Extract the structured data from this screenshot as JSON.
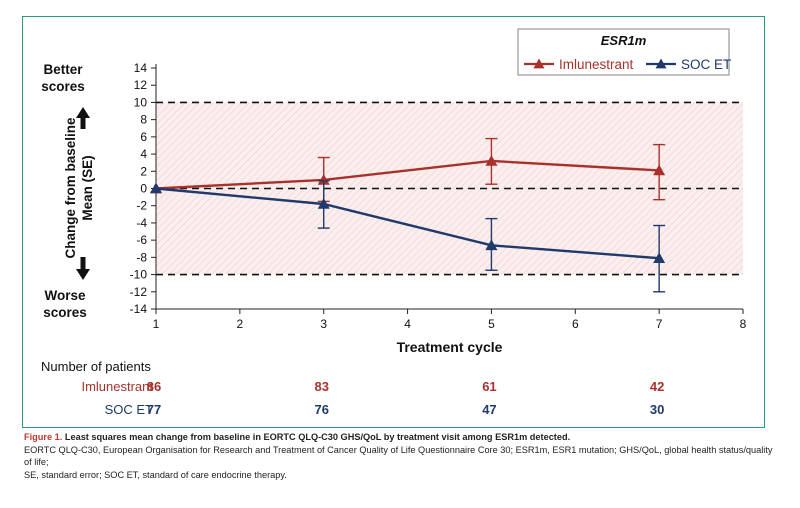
{
  "chart_data": {
    "type": "line",
    "xlabel": "Treatment cycle",
    "ylabel": [
      "Change from baseline",
      "Mean (SE)"
    ],
    "better_label": [
      "Better",
      "scores"
    ],
    "worse_label": [
      "Worse",
      "scores"
    ],
    "xlim": [
      1,
      8
    ],
    "ylim": [
      -14,
      14
    ],
    "x_ticks": [
      1,
      2,
      3,
      4,
      5,
      6,
      7,
      8
    ],
    "y_ticks": [
      14,
      12,
      10,
      8,
      6,
      4,
      2,
      0,
      -2,
      -4,
      -6,
      -8,
      -10,
      -12,
      -14
    ],
    "reference_lines": [
      10,
      0,
      -10
    ],
    "shaded_band": [
      -10,
      10
    ],
    "legend": {
      "title": "ESR1m",
      "placement": "top-right"
    },
    "series": [
      {
        "name": "Imlunestrant",
        "color": "#a8322b",
        "marker": "triangle",
        "x": [
          1,
          3,
          5,
          7
        ],
        "y": [
          0.0,
          1.0,
          3.2,
          2.1
        ],
        "err_low": [
          0.0,
          -1.5,
          0.5,
          -1.3
        ],
        "err_high": [
          0.0,
          3.6,
          5.8,
          5.1
        ]
      },
      {
        "name": "SOC ET",
        "color": "#1f3a6b",
        "marker": "triangle",
        "x": [
          1,
          3,
          5,
          7
        ],
        "y": [
          0.0,
          -1.8,
          -6.6,
          -8.1
        ],
        "err_low": [
          0.0,
          -4.6,
          -9.5,
          -12.0
        ],
        "err_high": [
          0.0,
          0.9,
          -3.5,
          -4.3
        ]
      }
    ],
    "patients_table": {
      "header": "Number of patients",
      "rows": [
        {
          "name": "Imlunestrant",
          "color": "#a8322b",
          "values": [
            "86",
            "83",
            "61",
            "42"
          ]
        },
        {
          "name": "SOC ET",
          "color": "#1f3a6b",
          "values": [
            "77",
            "76",
            "47",
            "30"
          ]
        }
      ]
    }
  },
  "caption": {
    "figure_label": "Figure 1.",
    "title": "Least squares mean change from baseline in EORTC QLQ-C30 GHS/QoL by treatment visit among ESR1m detected.",
    "abbreviations_1": "EORTC QLQ-C30, European Organisation for Research and Treatment of Cancer Quality of Life Questionnaire Core 30; ESR1m, ESR1 mutation; GHS/QoL, global health status/quality of life;",
    "abbreviations_2": "SE, standard error; SOC ET, standard of care endocrine therapy."
  }
}
